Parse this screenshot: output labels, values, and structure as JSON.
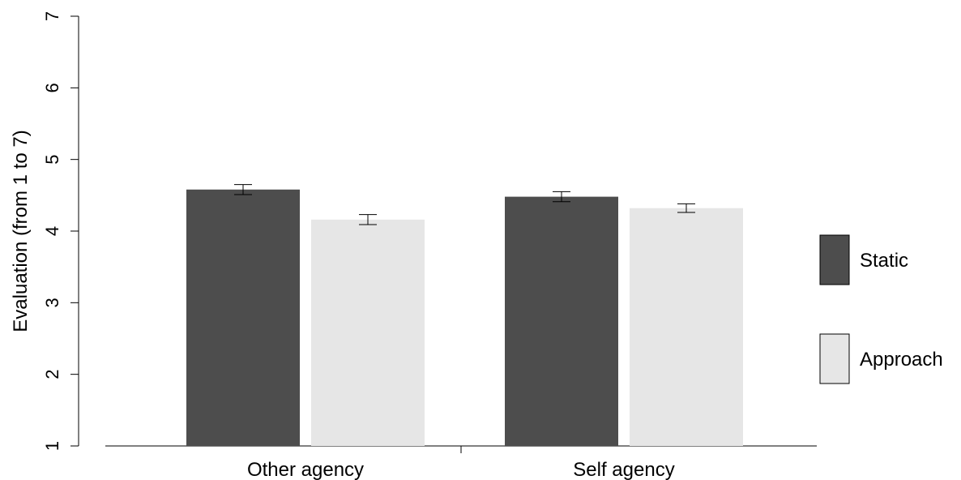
{
  "chart_data": {
    "type": "bar",
    "title": "",
    "xlabel": "",
    "ylabel": "Evaluation (from 1 to 7)",
    "ylim": [
      1,
      7
    ],
    "yticks": [
      "1",
      "2",
      "3",
      "4",
      "5",
      "6",
      "7"
    ],
    "categories": [
      "Other agency",
      "Self agency"
    ],
    "series": [
      {
        "name": "Static",
        "values": [
          4.58,
          4.48
        ],
        "errors": [
          0.07,
          0.07
        ],
        "color": "#4d4d4d"
      },
      {
        "name": "Approach",
        "values": [
          4.16,
          4.32
        ],
        "errors": [
          0.07,
          0.06
        ],
        "color": "#e6e6e6"
      }
    ],
    "grid": false,
    "legend": "right"
  }
}
